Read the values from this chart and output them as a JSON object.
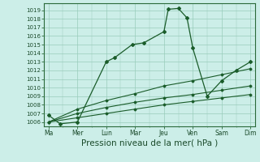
{
  "xlabel": "Pression niveau de la mer( hPa )",
  "xlabel_fontsize": 7.5,
  "bg_color": "#cceee8",
  "grid_color": "#99ccbb",
  "line_color": "#1a5c2a",
  "ylim": [
    1005.5,
    1019.8
  ],
  "yticks": [
    1006,
    1007,
    1008,
    1009,
    1010,
    1011,
    1012,
    1013,
    1014,
    1015,
    1016,
    1017,
    1018,
    1019
  ],
  "xtick_labels": [
    "Ma",
    "Mer",
    "Lun",
    "Mar",
    "Jeu",
    "Ven",
    "Sam",
    "Dim"
  ],
  "xtick_positions": [
    0,
    1,
    2,
    3,
    4,
    5,
    6,
    7
  ],
  "series1_x": [
    0,
    0.4,
    1.0,
    2.0,
    2.3,
    2.9,
    3.3,
    4.0,
    4.15,
    4.5,
    4.8,
    5.0,
    5.5,
    6.0,
    6.5,
    7.0
  ],
  "series1_y": [
    1006.8,
    1005.8,
    1006.0,
    1013.0,
    1013.5,
    1015.0,
    1015.2,
    1016.5,
    1019.1,
    1019.2,
    1018.1,
    1014.6,
    1009.0,
    1010.8,
    1012.0,
    1013.0
  ],
  "series2_x": [
    0,
    1,
    2,
    3,
    4,
    5,
    6,
    7
  ],
  "series2_y": [
    1006.0,
    1007.5,
    1008.5,
    1009.3,
    1010.2,
    1010.8,
    1011.5,
    1012.2
  ],
  "series3_x": [
    0,
    1,
    2,
    3,
    4,
    5,
    6,
    7
  ],
  "series3_y": [
    1006.0,
    1007.0,
    1007.7,
    1008.3,
    1008.8,
    1009.2,
    1009.7,
    1010.2
  ],
  "series4_x": [
    0,
    1,
    2,
    3,
    4,
    5,
    6,
    7
  ],
  "series4_y": [
    1006.0,
    1006.5,
    1007.0,
    1007.5,
    1008.0,
    1008.4,
    1008.8,
    1009.2
  ]
}
